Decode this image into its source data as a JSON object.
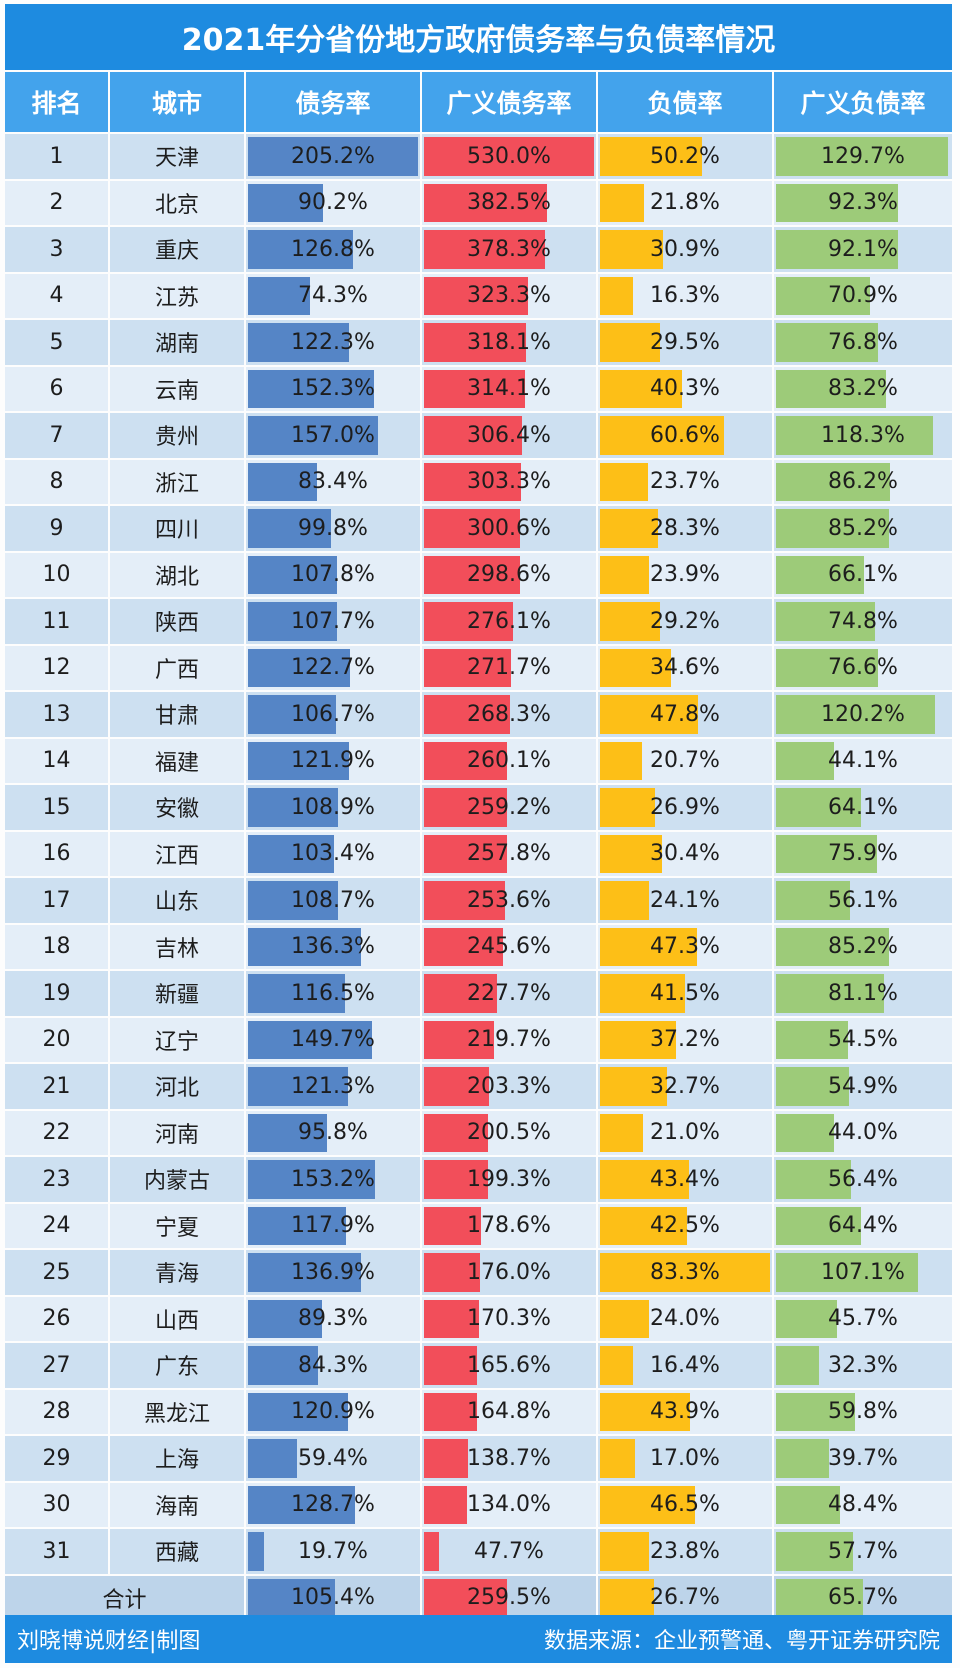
{
  "title": "2021年分省份地方政府债务率与负债率情况",
  "footer": {
    "left": "刘晓博说财经|制图",
    "right": "数据来源：企业预警通、粤开证券研究院"
  },
  "colors": {
    "debt_ratio": "#5585c6",
    "broad_debt_ratio": "#f24e5a",
    "liability_ratio": "#fdbf17",
    "broad_liability_ratio": "#9dcb79",
    "header": "#43a3ec",
    "title_bg": "#1e8be0"
  },
  "chart_data": {
    "type": "table",
    "title": "2021年分省份地方政府债务率与负债率情况",
    "columns": [
      "排名",
      "城市",
      "债务率",
      "广义债务率",
      "负债率",
      "广义负债率"
    ],
    "rows": [
      {
        "rank": "1",
        "city": "天津",
        "v": [
          "205.2%",
          "530.0%",
          "50.2%",
          "129.7%"
        ]
      },
      {
        "rank": "2",
        "city": "北京",
        "v": [
          "90.2%",
          "382.5%",
          "21.8%",
          "92.3%"
        ]
      },
      {
        "rank": "3",
        "city": "重庆",
        "v": [
          "126.8%",
          "378.3%",
          "30.9%",
          "92.1%"
        ]
      },
      {
        "rank": "4",
        "city": "江苏",
        "v": [
          "74.3%",
          "323.3%",
          "16.3%",
          "70.9%"
        ]
      },
      {
        "rank": "5",
        "city": "湖南",
        "v": [
          "122.3%",
          "318.1%",
          "29.5%",
          "76.8%"
        ]
      },
      {
        "rank": "6",
        "city": "云南",
        "v": [
          "152.3%",
          "314.1%",
          "40.3%",
          "83.2%"
        ]
      },
      {
        "rank": "7",
        "city": "贵州",
        "v": [
          "157.0%",
          "306.4%",
          "60.6%",
          "118.3%"
        ]
      },
      {
        "rank": "8",
        "city": "浙江",
        "v": [
          "83.4%",
          "303.3%",
          "23.7%",
          "86.2%"
        ]
      },
      {
        "rank": "9",
        "city": "四川",
        "v": [
          "99.8%",
          "300.6%",
          "28.3%",
          "85.2%"
        ]
      },
      {
        "rank": "10",
        "city": "湖北",
        "v": [
          "107.8%",
          "298.6%",
          "23.9%",
          "66.1%"
        ]
      },
      {
        "rank": "11",
        "city": "陕西",
        "v": [
          "107.7%",
          "276.1%",
          "29.2%",
          "74.8%"
        ]
      },
      {
        "rank": "12",
        "city": "广西",
        "v": [
          "122.7%",
          "271.7%",
          "34.6%",
          "76.6%"
        ]
      },
      {
        "rank": "13",
        "city": "甘肃",
        "v": [
          "106.7%",
          "268.3%",
          "47.8%",
          "120.2%"
        ]
      },
      {
        "rank": "14",
        "city": "福建",
        "v": [
          "121.9%",
          "260.1%",
          "20.7%",
          "44.1%"
        ]
      },
      {
        "rank": "15",
        "city": "安徽",
        "v": [
          "108.9%",
          "259.2%",
          "26.9%",
          "64.1%"
        ]
      },
      {
        "rank": "16",
        "city": "江西",
        "v": [
          "103.4%",
          "257.8%",
          "30.4%",
          "75.9%"
        ]
      },
      {
        "rank": "17",
        "city": "山东",
        "v": [
          "108.7%",
          "253.6%",
          "24.1%",
          "56.1%"
        ]
      },
      {
        "rank": "18",
        "city": "吉林",
        "v": [
          "136.3%",
          "245.6%",
          "47.3%",
          "85.2%"
        ]
      },
      {
        "rank": "19",
        "city": "新疆",
        "v": [
          "116.5%",
          "227.7%",
          "41.5%",
          "81.1%"
        ]
      },
      {
        "rank": "20",
        "city": "辽宁",
        "v": [
          "149.7%",
          "219.7%",
          "37.2%",
          "54.5%"
        ]
      },
      {
        "rank": "21",
        "city": "河北",
        "v": [
          "121.3%",
          "203.3%",
          "32.7%",
          "54.9%"
        ]
      },
      {
        "rank": "22",
        "city": "河南",
        "v": [
          "95.8%",
          "200.5%",
          "21.0%",
          "44.0%"
        ]
      },
      {
        "rank": "23",
        "city": "内蒙古",
        "v": [
          "153.2%",
          "199.3%",
          "43.4%",
          "56.4%"
        ]
      },
      {
        "rank": "24",
        "city": "宁夏",
        "v": [
          "117.9%",
          "178.6%",
          "42.5%",
          "64.4%"
        ]
      },
      {
        "rank": "25",
        "city": "青海",
        "v": [
          "136.9%",
          "176.0%",
          "83.3%",
          "107.1%"
        ]
      },
      {
        "rank": "26",
        "city": "山西",
        "v": [
          "89.3%",
          "170.3%",
          "24.0%",
          "45.7%"
        ]
      },
      {
        "rank": "27",
        "city": "广东",
        "v": [
          "84.3%",
          "165.6%",
          "16.4%",
          "32.3%"
        ]
      },
      {
        "rank": "28",
        "city": "黑龙江",
        "v": [
          "120.9%",
          "164.8%",
          "43.9%",
          "59.8%"
        ]
      },
      {
        "rank": "29",
        "city": "上海",
        "v": [
          "59.4%",
          "138.7%",
          "17.0%",
          "39.7%"
        ]
      },
      {
        "rank": "30",
        "city": "海南",
        "v": [
          "128.7%",
          "134.0%",
          "46.5%",
          "48.4%"
        ]
      },
      {
        "rank": "31",
        "city": "西藏",
        "v": [
          "19.7%",
          "47.7%",
          "23.8%",
          "57.7%"
        ]
      }
    ],
    "total": {
      "label": "合计",
      "v": [
        "105.4%",
        "259.5%",
        "26.7%",
        "65.7%"
      ]
    },
    "bar_max": [
      205.2,
      530.0,
      83.3,
      129.7
    ]
  }
}
